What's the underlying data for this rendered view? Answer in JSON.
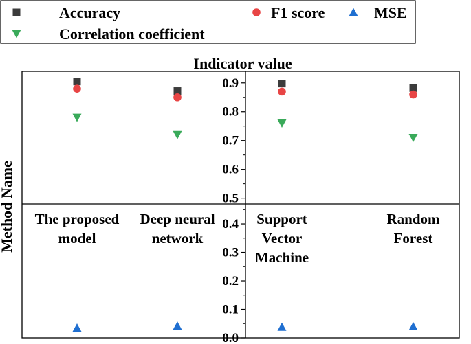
{
  "chart_data": {
    "type": "scatter",
    "title": "Indicator value",
    "ylabel": "Method Name",
    "categories": [
      {
        "lines": [
          "The proposed",
          "model"
        ]
      },
      {
        "lines": [
          "Deep neural",
          "network"
        ]
      },
      {
        "lines": [
          "Support",
          "Vector",
          "Machine"
        ]
      },
      {
        "lines": [
          "Random",
          "Forest"
        ]
      }
    ],
    "upper_panel": {
      "ylim": [
        0.48,
        0.94
      ],
      "ticks": [
        "0.5",
        "0.6",
        "0.7",
        "0.8",
        "0.9"
      ]
    },
    "lower_panel": {
      "ylim": [
        0.0,
        0.47
      ],
      "ticks": [
        "0.0",
        "0.1",
        "0.2",
        "0.3",
        "0.4"
      ]
    },
    "series": [
      {
        "name": "Accuracy",
        "marker": "square",
        "color": "#3c3c3c",
        "panel": "upper",
        "values": [
          0.905,
          0.872,
          0.898,
          0.882
        ]
      },
      {
        "name": "F1 score",
        "marker": "circle",
        "color": "#e84545",
        "panel": "upper",
        "values": [
          0.88,
          0.85,
          0.87,
          0.86
        ]
      },
      {
        "name": "MSE",
        "marker": "triangle-up",
        "color": "#1f6fd1",
        "panel": "lower",
        "values": [
          0.035,
          0.042,
          0.038,
          0.04
        ]
      },
      {
        "name": "Correlation coefficient",
        "marker": "triangle-down",
        "color": "#3aaa5a",
        "panel": "upper",
        "values": [
          0.78,
          0.72,
          0.76,
          0.71
        ]
      }
    ]
  }
}
